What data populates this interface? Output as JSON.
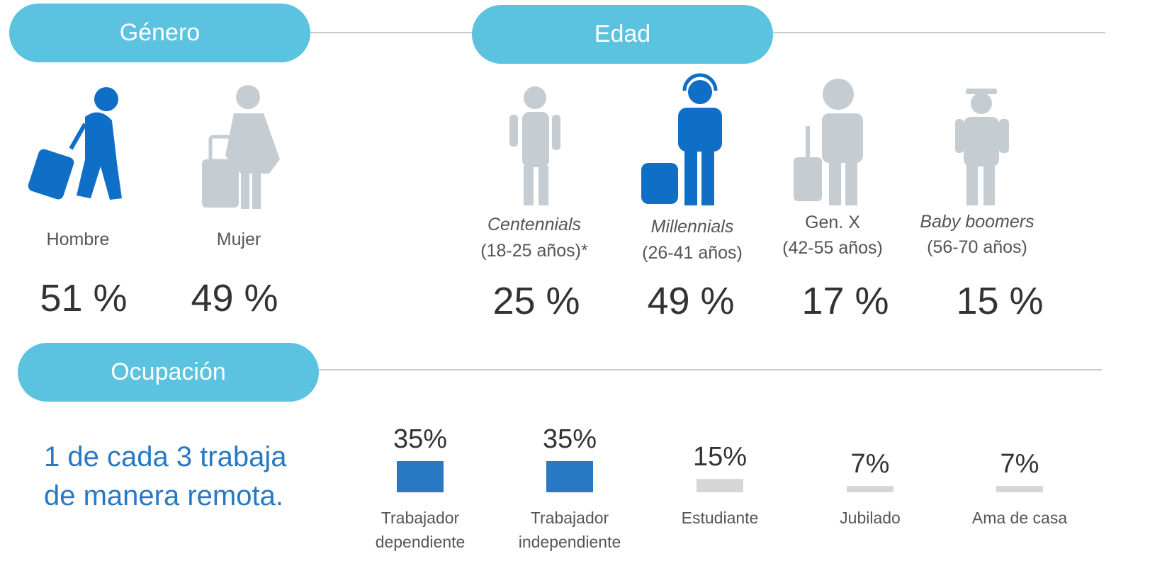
{
  "genero": {
    "title": "Género",
    "items": [
      {
        "label": "Hombre",
        "value_label": "51 %"
      },
      {
        "label": "Mujer",
        "value_label": "49 %"
      }
    ]
  },
  "edad": {
    "title": "Edad",
    "items": [
      {
        "label": "Centennials",
        "range": "(18-25 años)*",
        "value_label": "25 %"
      },
      {
        "label": "Millennials",
        "range": "(26-41 años)",
        "value_label": "49 %"
      },
      {
        "label": "Gen. X",
        "range": "(42-55 años)",
        "value_label": "17 %"
      },
      {
        "label": "Baby boomers",
        "range": "(56-70 años)",
        "value_label": "15 %"
      }
    ]
  },
  "ocupacion": {
    "title": "Ocupación",
    "note": "1 de cada 3 trabaja de manera remota.",
    "items": [
      {
        "label": "Trabajador dependiente",
        "value": 35,
        "value_label": "35%",
        "color": "#2878c3"
      },
      {
        "label": "Trabajador independiente",
        "value": 35,
        "value_label": "35%",
        "color": "#2878c3"
      },
      {
        "label": "Estudiante",
        "value": 15,
        "value_label": "15%",
        "color": "#d6d6d6"
      },
      {
        "label": "Jubilado",
        "value": 7,
        "value_label": "7%",
        "color": "#d6d6d6"
      },
      {
        "label": "Ama de casa",
        "value": 7,
        "value_label": "7%",
        "color": "#d6d6d6"
      }
    ]
  }
}
